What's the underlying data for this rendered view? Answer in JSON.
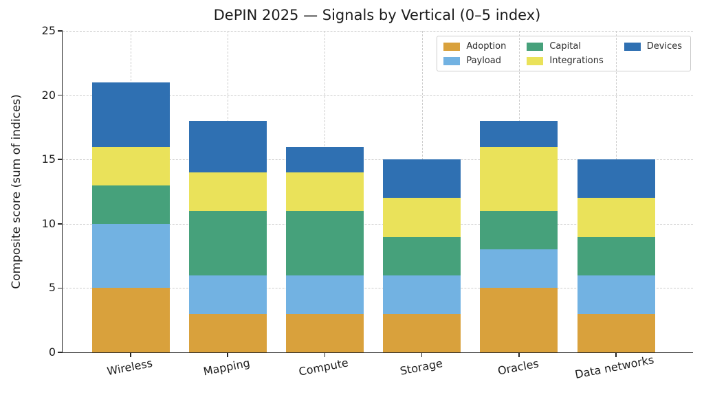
{
  "chart_data": {
    "type": "bar",
    "stacked": true,
    "title": "DePIN 2025 — Signals by Vertical (0–5 index)",
    "xlabel": "",
    "ylabel": "Composite score (sum of indices)",
    "categories": [
      "Wireless",
      "Mapping",
      "Compute",
      "Storage",
      "Oracles",
      "Data networks"
    ],
    "series": [
      {
        "name": "Adoption",
        "color": "#D9A13C",
        "values": [
          5,
          3,
          3,
          3,
          5,
          3
        ]
      },
      {
        "name": "Payload",
        "color": "#72B2E2",
        "values": [
          5,
          3,
          3,
          3,
          3,
          3
        ]
      },
      {
        "name": "Capital",
        "color": "#46A17B",
        "values": [
          3,
          5,
          5,
          3,
          3,
          3
        ]
      },
      {
        "name": "Integrations",
        "color": "#EAE25A",
        "values": [
          3,
          3,
          3,
          3,
          5,
          3
        ]
      },
      {
        "name": "Devices",
        "color": "#2F70B2",
        "values": [
          5,
          4,
          2,
          3,
          2,
          3
        ]
      }
    ],
    "ylim": [
      0,
      25
    ],
    "yticks": [
      "0",
      "5",
      "10",
      "15",
      "20",
      "25"
    ],
    "grid": "dashed horizontal and vertical gridlines",
    "legend": {
      "position": "upper-right",
      "columns": [
        [
          "Adoption",
          "Payload"
        ],
        [
          "Capital",
          "Integrations"
        ],
        [
          "Devices"
        ]
      ]
    },
    "colors": {
      "grid": "#cccccc",
      "axis": "#262626",
      "background": "#ffffff",
      "legend_border": "#cccccc"
    }
  }
}
